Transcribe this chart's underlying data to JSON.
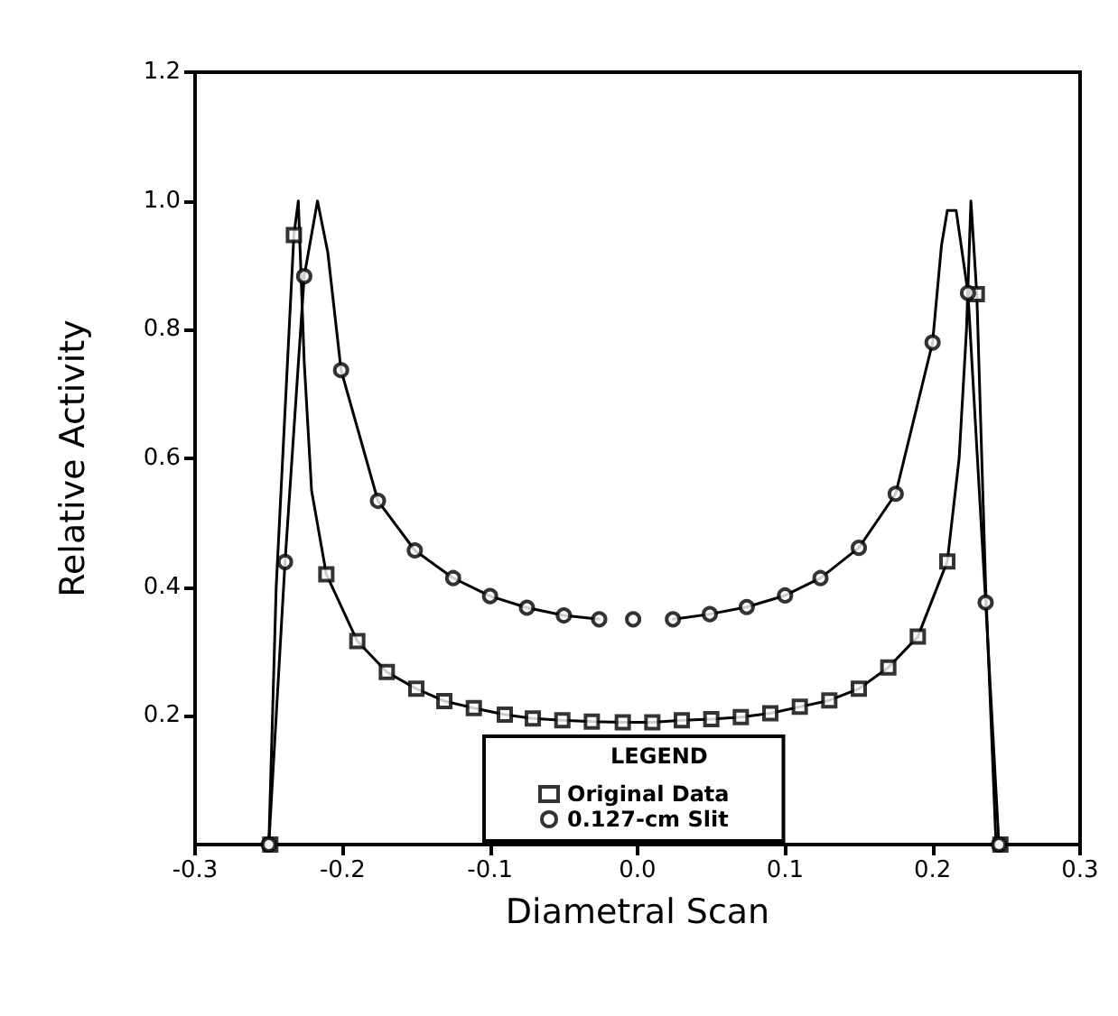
{
  "chart_data": {
    "type": "scatter",
    "xlabel": "Diametral Scan",
    "ylabel": "Relative Activity",
    "legend_title": "LEGEND",
    "legend": "bottom",
    "grid": false,
    "xlim": [
      -0.3,
      0.3
    ],
    "xticks": [
      -0.3,
      -0.2,
      -0.1,
      {
        "value": 0,
        "label": "0.0"
      },
      0.1,
      0.2,
      0.3
    ],
    "ylim": [
      0,
      1.2
    ],
    "yticks": [
      0.2,
      0.4,
      0.6,
      0.8,
      {
        "value": 1,
        "label": "1.0"
      },
      {
        "value": 1.2,
        "label": "1.2"
      }
    ],
    "series": [
      {
        "type": "line",
        "color": "#000000",
        "marker": "none",
        "x": [
          -0.25,
          -0.245,
          -0.233,
          -0.23,
          -0.226,
          -0.221,
          -0.211,
          -0.19,
          -0.17,
          -0.15,
          -0.131,
          -0.111,
          -0.09,
          -0.071,
          -0.051,
          -0.031,
          -0.01,
          0.01,
          0.03,
          0.05,
          0.07,
          0.09,
          0.11,
          0.13,
          0.15,
          0.17,
          0.19,
          0.21,
          0.218,
          0.223,
          0.226,
          0.23,
          0.236,
          0.243
        ],
        "values": [
          0,
          0.4,
          0.947,
          1.0,
          0.75,
          0.55,
          0.42,
          0.316,
          0.268,
          0.242,
          0.223,
          0.212,
          0.202,
          0.196,
          0.193,
          0.191,
          0.19,
          0.19,
          0.193,
          0.195,
          0.198,
          0.204,
          0.214,
          0.224,
          0.242,
          0.275,
          0.323,
          0.44,
          0.6,
          0.8,
          1.0,
          0.855,
          0.4,
          0
        ]
      },
      {
        "type": "line",
        "color": "#000000",
        "marker": "none",
        "x": [
          -0.25,
          -0.239,
          -0.226,
          -0.217,
          -0.21,
          -0.201,
          -0.176,
          -0.151,
          -0.125,
          -0.1,
          -0.075,
          -0.05,
          -0.026,
          0.0,
          0.024,
          0.049,
          0.074,
          0.1,
          0.124,
          0.15,
          0.175,
          0.2,
          0.206,
          0.21,
          0.216,
          0.224,
          0.236,
          0.245
        ],
        "values": [
          0,
          0.439,
          0.883,
          1.0,
          0.92,
          0.737,
          0.534,
          0.457,
          0.414,
          0.386,
          0.368,
          0.356,
          0.35,
          null,
          0.35,
          0.358,
          0.369,
          0.387,
          0.414,
          0.461,
          0.545,
          0.78,
          0.93,
          0.985,
          0.985,
          0.857,
          0.376,
          0
        ]
      },
      {
        "name": "Original Data",
        "color": "#000000",
        "marker": "square",
        "x": [
          -0.249,
          -0.233,
          -0.211,
          -0.19,
          -0.17,
          -0.15,
          -0.131,
          -0.111,
          -0.09,
          -0.071,
          -0.051,
          -0.031,
          -0.01,
          0.01,
          0.03,
          0.05,
          0.07,
          0.09,
          0.11,
          0.13,
          0.15,
          0.17,
          0.19,
          0.21,
          0.23,
          0.246
        ],
        "values": [
          0,
          0.947,
          0.42,
          0.316,
          0.268,
          0.242,
          0.223,
          0.212,
          0.202,
          0.196,
          0.193,
          0.191,
          0.19,
          0.19,
          0.193,
          0.195,
          0.198,
          0.204,
          0.214,
          0.224,
          0.242,
          0.275,
          0.323,
          0.44,
          0.855,
          0
        ]
      },
      {
        "name": "0.127-cm Slit",
        "color": "#000000",
        "marker": "circle",
        "x": [
          -0.25,
          -0.239,
          -0.226,
          -0.201,
          -0.176,
          -0.151,
          -0.125,
          -0.1,
          -0.075,
          -0.05,
          -0.026,
          -0.003,
          0.024,
          0.049,
          0.074,
          0.1,
          0.124,
          0.15,
          0.175,
          0.2,
          0.224,
          0.236,
          0.245
        ],
        "values": [
          0,
          0.439,
          0.883,
          0.737,
          0.534,
          0.457,
          0.414,
          0.386,
          0.368,
          0.356,
          0.35,
          0.35,
          0.35,
          0.358,
          0.369,
          0.387,
          0.414,
          0.461,
          0.545,
          0.78,
          0.857,
          0.376,
          0
        ]
      }
    ]
  }
}
